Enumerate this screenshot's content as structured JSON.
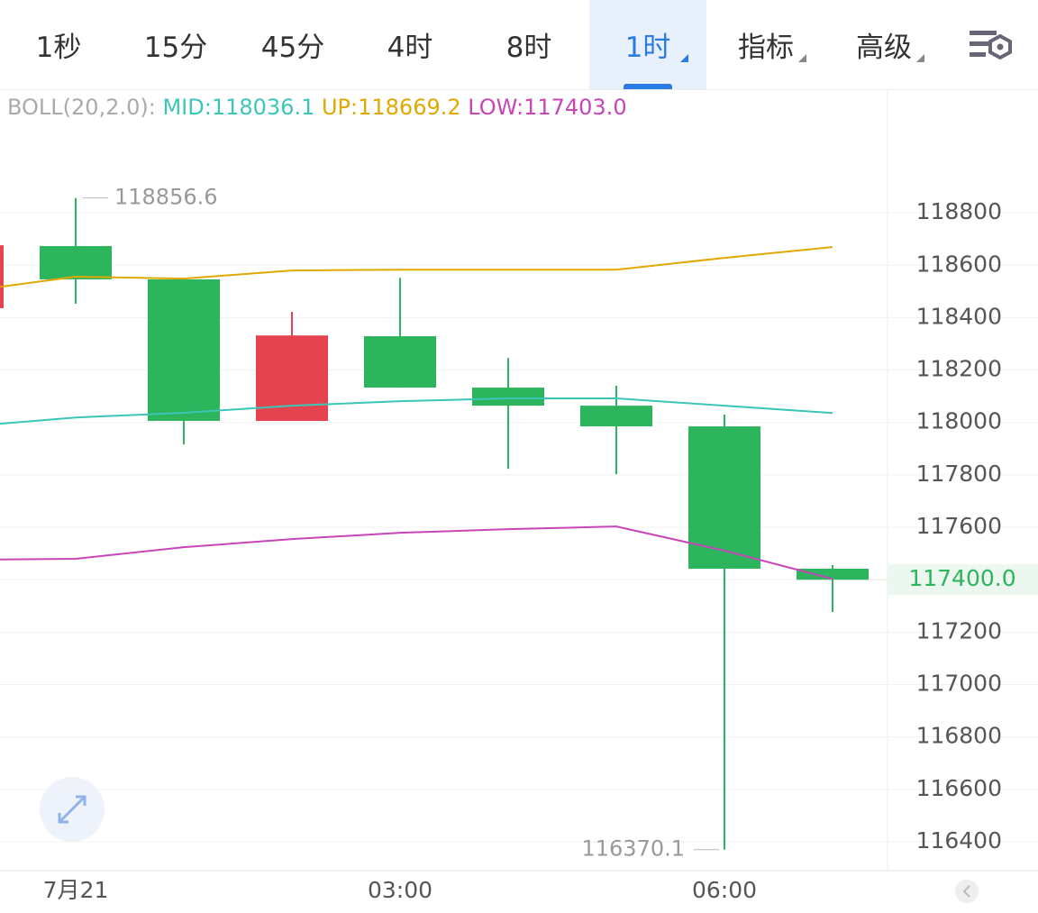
{
  "tabs": {
    "items": [
      "1秒",
      "15分",
      "45分",
      "4时",
      "8时",
      "1时",
      "指标",
      "高级"
    ],
    "active": 5,
    "dropdown": [
      5,
      6,
      7
    ]
  },
  "chart_data": {
    "type": "candlestick",
    "categories": [
      null,
      "7月21",
      null,
      null,
      "03:00",
      null,
      null,
      "06:00",
      null
    ],
    "open": [
      118436,
      118673,
      118546,
      118006,
      118329,
      118133,
      118064,
      117985,
      117442
    ],
    "close": [
      118676,
      118546,
      118006,
      118332,
      118133,
      118064,
      117985,
      117442,
      117400
    ],
    "high": [
      118676,
      118856.6,
      118546,
      118422,
      118552,
      118246,
      118140,
      118030,
      117456
    ],
    "low": [
      118436,
      118453,
      117916,
      118006,
      118133,
      117823,
      117803,
      116370.1,
      117277
    ],
    "up_color": "#e5434f",
    "down_color": "#2db55d",
    "indicator_label": "BOLL(20,2.0):",
    "series": [
      {
        "name": "MID:118036.1",
        "color": "#3cc6b8",
        "values": [
          117985,
          118019,
          118037,
          118064,
          118081,
          118092,
          118092,
          118064,
          118036.1
        ]
      },
      {
        "name": "UP:118669.2",
        "color": "#e0a800",
        "values": [
          118501,
          118556,
          118549,
          118580,
          118583,
          118583,
          118583,
          118628,
          118669.2
        ]
      },
      {
        "name": "LOW:117403.0",
        "color": "#c845b8",
        "values": [
          117476,
          117480,
          117524,
          117555,
          117579,
          117593,
          117603,
          117511,
          117403.0
        ]
      }
    ],
    "last_price_label": "117400.0",
    "ylim": [
      116290,
      119268
    ],
    "yticks": [
      116400,
      116600,
      116800,
      117000,
      117200,
      117400,
      117600,
      117800,
      118000,
      118200,
      118400,
      118600,
      118800
    ],
    "grid": true
  }
}
